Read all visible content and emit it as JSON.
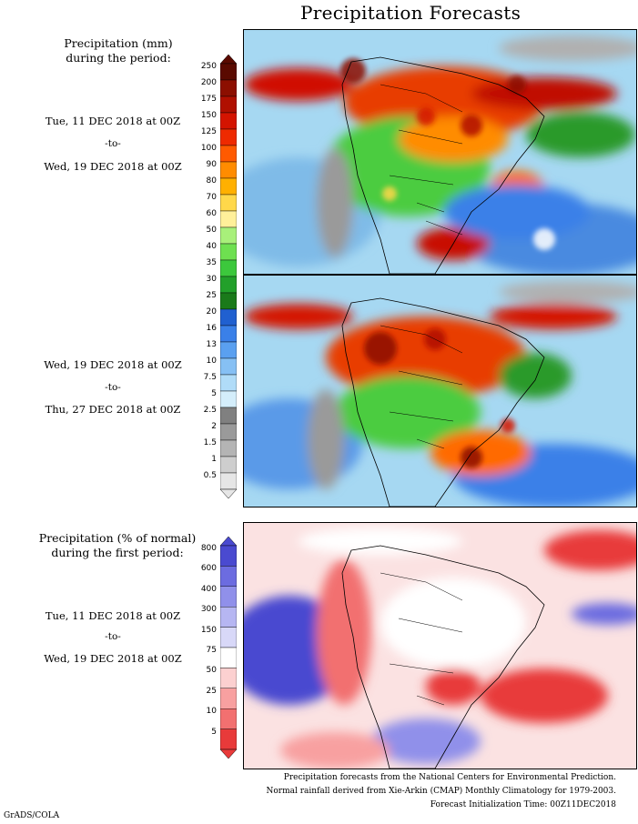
{
  "title": "Precipitation Forecasts",
  "panel1": {
    "heading_line1": "Precipitation (mm)",
    "heading_line2": "during the period:",
    "start": "Tue, 11 DEC 2018 at 00Z",
    "to": "-to-",
    "end": "Wed, 19 DEC 2018 at 00Z"
  },
  "panel2": {
    "start": "Wed, 19 DEC 2018 at 00Z",
    "to": "-to-",
    "end": "Thu, 27 DEC 2018 at 00Z"
  },
  "panel3": {
    "heading_line1": "Precipitation (% of normal)",
    "heading_line2": "during the first period:",
    "start": "Tue, 11 DEC 2018 at 00Z",
    "to": "-to-",
    "end": "Wed, 19 DEC 2018 at 00Z"
  },
  "mm_scale": {
    "labels": [
      "250",
      "200",
      "175",
      "150",
      "125",
      "100",
      "90",
      "80",
      "70",
      "60",
      "50",
      "40",
      "35",
      "30",
      "25",
      "20",
      "16",
      "13",
      "10",
      "7.5",
      "5",
      "2.5",
      "2",
      "1.5",
      "1",
      "0.5"
    ],
    "colors": [
      "#5a0a00",
      "#8c0f00",
      "#b01000",
      "#d41400",
      "#ee2a00",
      "#ff5a00",
      "#ff8c00",
      "#ffb000",
      "#ffd84a",
      "#fff09a",
      "#a8f07a",
      "#6ee050",
      "#3cc83c",
      "#22a02a",
      "#1a7a1a",
      "#2060d0",
      "#3a80e8",
      "#5aa0f0",
      "#86c0f4",
      "#b0dcf8",
      "#d4eefb",
      "#808080",
      "#9a9a9a",
      "#b4b4b4",
      "#cecece",
      "#e6e6e6"
    ]
  },
  "pct_scale": {
    "labels": [
      "800",
      "600",
      "400",
      "300",
      "150",
      "75",
      "50",
      "25",
      "10",
      "5"
    ],
    "colors": [
      "#4a4ad0",
      "#6c6ce0",
      "#9090ea",
      "#b6b6f2",
      "#d8d8f8",
      "#ffffff",
      "#fcd0d0",
      "#f8a0a0",
      "#f27070",
      "#e83a3a"
    ]
  },
  "footer": {
    "line1": "Precipitation forecasts from the National Centers for Environmental Prediction.",
    "line2": "Normal rainfall derived from Xie-Arkin (CMAP) Monthly Climatology for 1979-2003.",
    "line3": "Forecast Initialization Time: 00Z11DEC2018"
  },
  "credit": "GrADS/COLA"
}
